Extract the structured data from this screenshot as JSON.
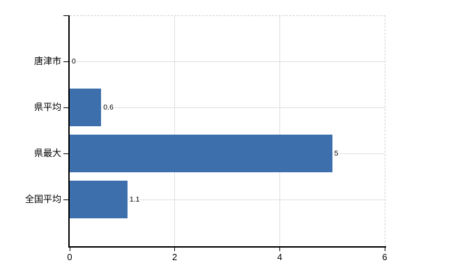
{
  "chart_data": {
    "type": "bar",
    "orientation": "horizontal",
    "title": "",
    "xlabel": "",
    "ylabel": "",
    "categories": [
      "唐津市",
      "県平均",
      "県最大",
      "全国平均"
    ],
    "values": [
      0,
      0.6,
      5,
      1.1
    ],
    "value_labels": [
      "0",
      "0.6",
      "5",
      "1.1"
    ],
    "xlim": [
      0,
      6
    ],
    "x_ticks": [
      0,
      2,
      4,
      6
    ],
    "x_tick_labels": [
      "0",
      "2",
      "4",
      "6"
    ],
    "grid": true,
    "legend": false,
    "colors": {
      "bar_fill": "#3e6fad",
      "axis_line": "#000000",
      "gridline": "#dce1da",
      "dashed_border": "#d2d2d2",
      "text": "#000000",
      "background": "#ffffff"
    }
  }
}
